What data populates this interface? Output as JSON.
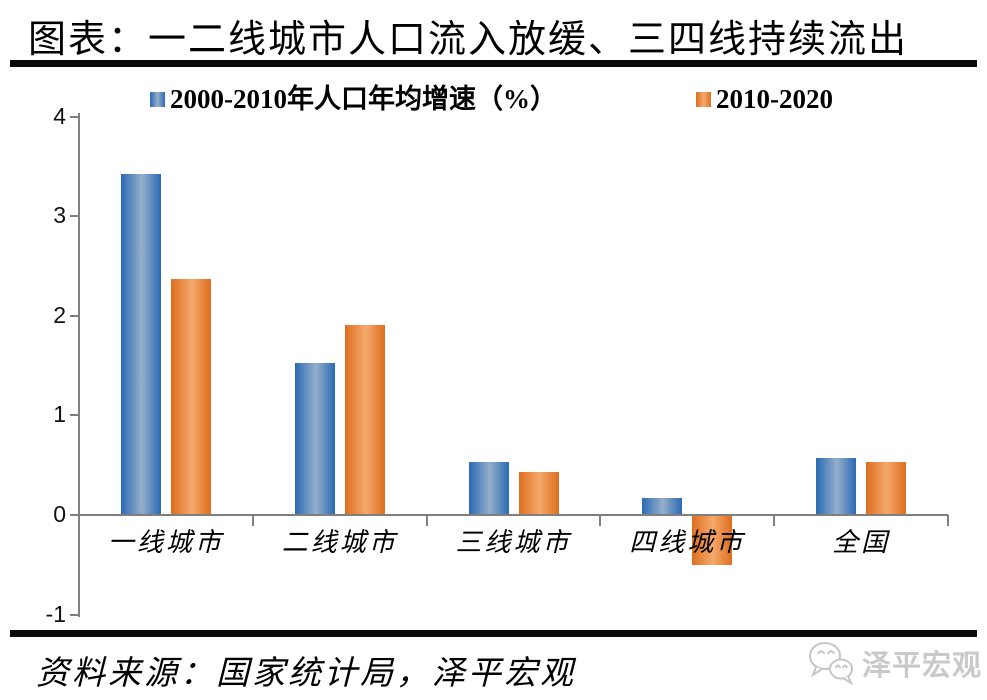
{
  "title": "图表：一二线城市人口流入放缓、三四线持续流出",
  "source_note": "资料来源：国家统计局，泽平宏观",
  "watermark": {
    "brand": "泽平宏观",
    "icon": "wechat-icon"
  },
  "colors": {
    "axis": "#7F7F7F",
    "separator": "#0a0a0a",
    "watermark_gray": "#c9c9c9",
    "blue_dark": "#2A6AB4",
    "blue_light": "#95AFCB",
    "orange_dark": "#DE6E1E",
    "orange_light": "#F5A96C"
  },
  "chart_data": {
    "type": "bar",
    "title": "图表：一二线城市人口流入放缓、三四线持续流出",
    "categories": [
      "一线城市",
      "二线城市",
      "三线城市",
      "四线城市",
      "全国"
    ],
    "series": [
      {
        "name": "2000-2010年人口年均增速（%）",
        "color_dark": "#2A6AB4",
        "color_light": "#95AFCB",
        "values": [
          3.42,
          1.53,
          0.53,
          0.17,
          0.57
        ]
      },
      {
        "name": "2010-2020",
        "color_dark": "#DE6E1E",
        "color_light": "#F5A96C",
        "values": [
          2.37,
          1.91,
          0.43,
          -0.49,
          0.53
        ]
      }
    ],
    "ylim": [
      -1,
      4
    ],
    "yticks": [
      4,
      3,
      2,
      1,
      0,
      -1
    ],
    "xlabel": "",
    "ylabel": "",
    "legend_position": "top",
    "grid": false
  }
}
